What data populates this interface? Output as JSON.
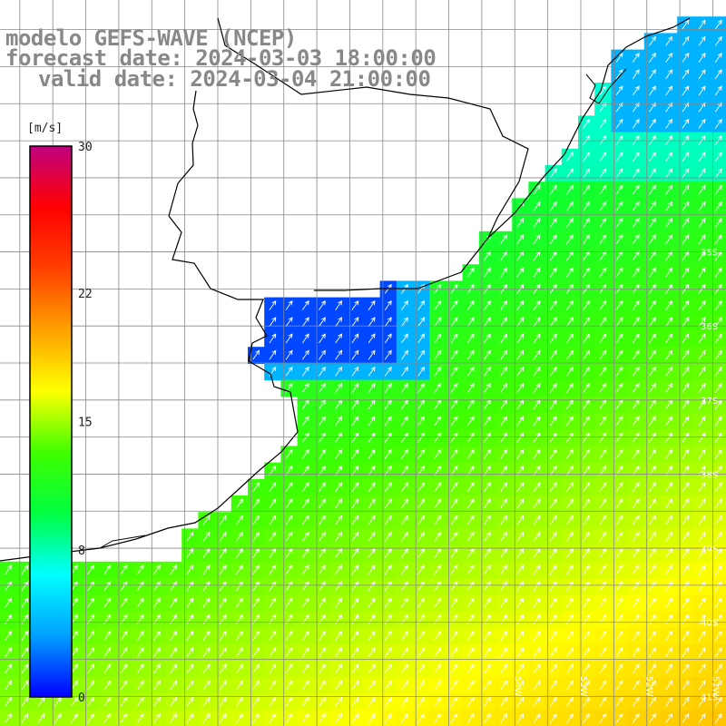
{
  "title": {
    "line1": "modelo GEFS-WAVE (NCEP)",
    "line2": "forecast date: 2024-03-03 18:00:00",
    "line3": "valid date: 2024-03-04 21:00:00"
  },
  "colorbar": {
    "unit": "[m/s]",
    "ticks": [
      "30",
      "22",
      "15",
      "8",
      "0"
    ],
    "tick_values": [
      30,
      22,
      15,
      8,
      0
    ],
    "range": [
      0,
      30
    ],
    "colors": [
      "#0000ff",
      "#00a0ff",
      "#00ffff",
      "#00ff40",
      "#40ff00",
      "#ffff00",
      "#ffa000",
      "#ff4000",
      "#ff0000",
      "#c00080"
    ]
  },
  "axes": {
    "lat_labels": [
      "35S",
      "36S",
      "37S",
      "38S",
      "39S",
      "40S",
      "41S"
    ],
    "lon_labels": [
      "54W",
      "53W",
      "52W",
      "51W"
    ],
    "lat_range": [
      -41.4,
      -31.6
    ],
    "lon_range": [
      -61.8,
      -50.8
    ]
  },
  "legend_colors": {
    "land": "#ffffff",
    "grid": "#888888",
    "coast": "#000000",
    "arrows": "#ffffff"
  }
}
